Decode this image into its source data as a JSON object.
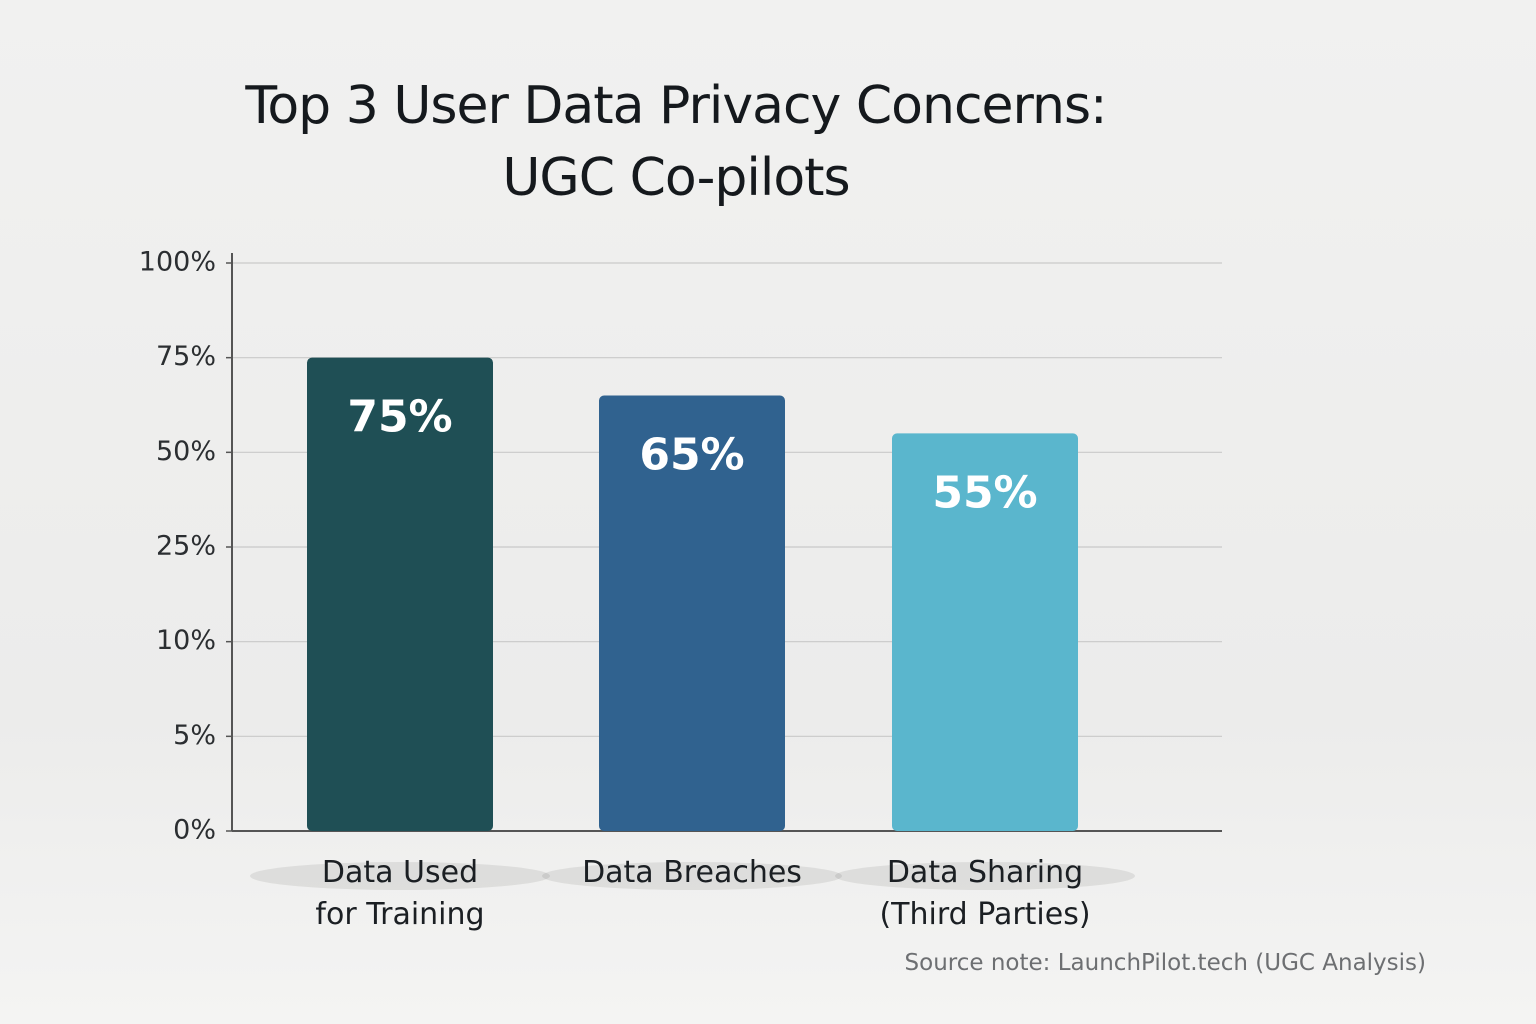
{
  "chart_data": {
    "type": "bar",
    "title": "Top 3 User Data Privacy Concerns:\nUGC Co-pilots",
    "categories": [
      "Data Used\nfor Training",
      "Data Breaches",
      "Data Sharing\n(Third Parties)"
    ],
    "series": [
      {
        "values": [
          75,
          65,
          55
        ],
        "value_labels": [
          "75%",
          "65%",
          "55%"
        ],
        "colors": [
          "#1f4f55",
          "#30628f",
          "#5ab6cd"
        ]
      }
    ],
    "ylim": [
      0,
      100
    ],
    "yticks": [
      {
        "value": 0,
        "label": "0%"
      },
      {
        "value": 5,
        "label": "5%"
      },
      {
        "value": 10,
        "label": "10%"
      },
      {
        "value": 25,
        "label": "25%"
      },
      {
        "value": 50,
        "label": "50%"
      },
      {
        "value": 75,
        "label": "75%"
      },
      {
        "value": 100,
        "label": "100%"
      }
    ],
    "grid": true,
    "source": "Source note: LaunchPilot.tech (UGC Analysis)"
  }
}
